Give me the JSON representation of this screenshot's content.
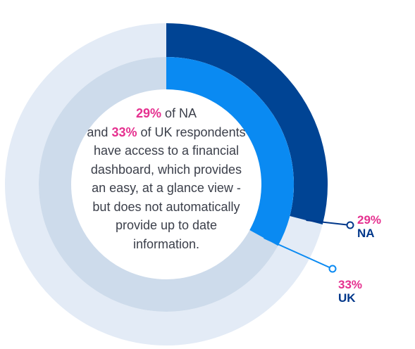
{
  "chart_data": {
    "type": "donut",
    "rings": [
      {
        "ring": "outer",
        "name": "NA",
        "value": 29,
        "value_label": "29%",
        "color": "#004494",
        "track_color": "#e3ebf6"
      },
      {
        "ring": "inner",
        "name": "UK",
        "value": 33,
        "value_label": "33%",
        "color": "#0a8af2",
        "track_color": "#cddbeb"
      }
    ],
    "label_pct_color": "#e5308f",
    "label_name_color": "#00378a"
  },
  "center": {
    "na_pct": "29%",
    "line1_rest": " of NA",
    "line2_pre": "and ",
    "uk_pct": "33%",
    "line2_rest": " of UK respondents",
    "lines": [
      "have access to a financial",
      "dashboard, which provides",
      "an easy, at a glance view -",
      "but does not automatically",
      "provide up to date",
      "information."
    ]
  }
}
